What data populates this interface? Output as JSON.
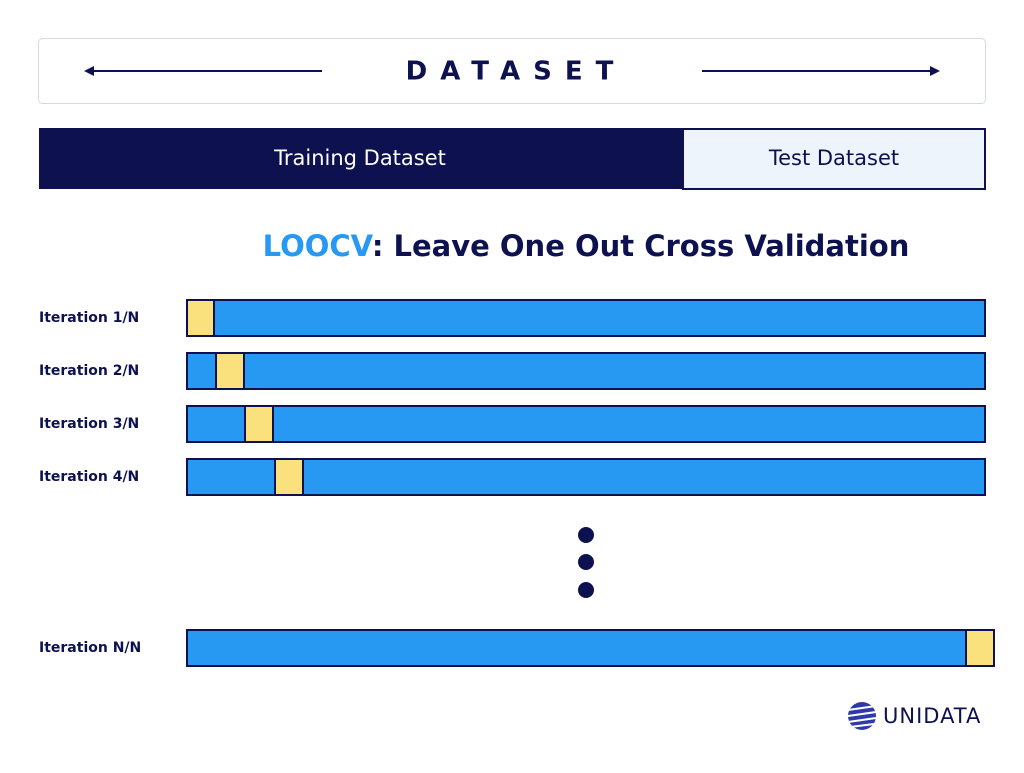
{
  "header": {
    "title": "DATASET"
  },
  "split": {
    "training": "Training Dataset",
    "test": "Test Dataset"
  },
  "title": {
    "highlight": "LOOCV",
    "rest": ": Leave One Out Cross Validation"
  },
  "iterations": [
    {
      "label": "Iteration 1/N"
    },
    {
      "label": "Iteration 2/N"
    },
    {
      "label": "Iteration 3/N"
    },
    {
      "label": "Iteration 4/N"
    },
    {
      "label": "Iteration N/N"
    }
  ],
  "logo": {
    "text": "UNIDATA"
  }
}
